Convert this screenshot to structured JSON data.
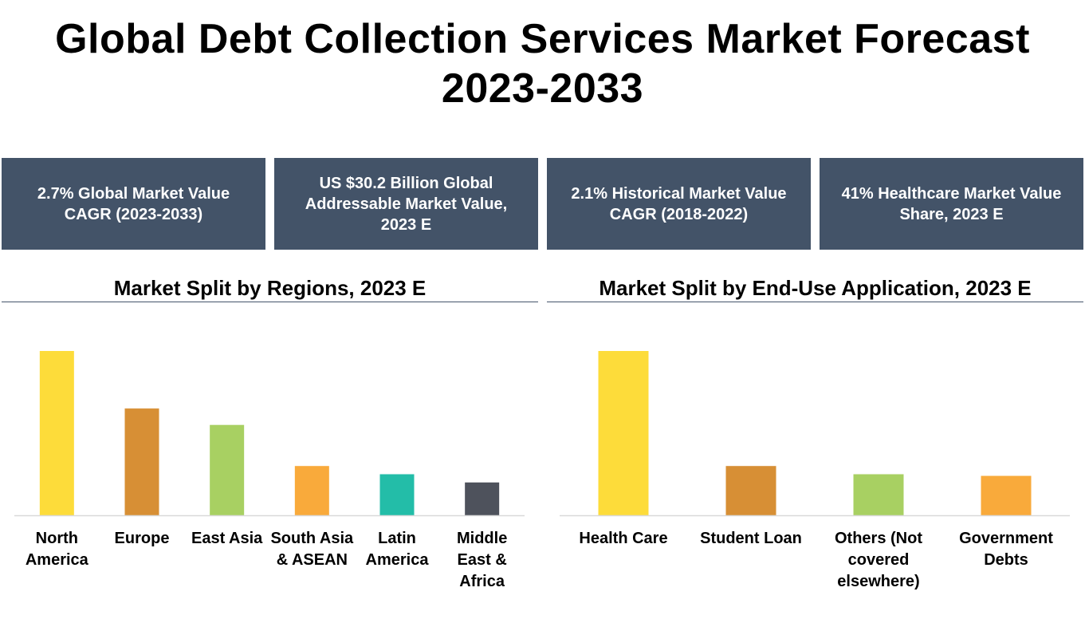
{
  "title_line1": "Global Debt Collection Services Market Forecast",
  "title_line2": "2023-2033",
  "stats": [
    {
      "text": "2.7% Global Market Value CAGR (2023-2033)"
    },
    {
      "text": "US $30.2 Billion Global Addressable Market Value, 2023 E"
    },
    {
      "text": "2.1% Historical Market Value CAGR (2018-2022)"
    },
    {
      "text": "41% Healthcare Market Value Share, 2023 E"
    }
  ],
  "colors": {
    "stat_box": "#435368",
    "divider": "#44546a",
    "bars": [
      "#fddc3a",
      "#d78f35",
      "#a8d062",
      "#f9aa3b",
      "#23bda8",
      "#4e525c"
    ]
  },
  "chart_data": [
    {
      "type": "bar",
      "title": "Market Split by Regions, 2023 E",
      "categories": [
        "North America",
        "Europe",
        "East Asia",
        "South Asia & ASEAN",
        "Latin America",
        "Middle East & Africa"
      ],
      "values": [
        100,
        65,
        55,
        30,
        25,
        20
      ],
      "colors": [
        "#fddc3a",
        "#d78f35",
        "#a8d062",
        "#f9aa3b",
        "#23bda8",
        "#4e525c"
      ],
      "ylim": [
        0,
        100
      ],
      "grid": false,
      "legend": "none"
    },
    {
      "type": "bar",
      "title": "Market Split by End-Use Application, 2023 E",
      "categories": [
        "Health Care",
        "Student Loan",
        "Others (Not covered elsewhere)",
        "Government Debts"
      ],
      "values": [
        100,
        30,
        25,
        24
      ],
      "colors": [
        "#fddc3a",
        "#d78f35",
        "#a8d062",
        "#f9aa3b"
      ],
      "ylim": [
        0,
        100
      ],
      "grid": false,
      "legend": "none"
    }
  ]
}
